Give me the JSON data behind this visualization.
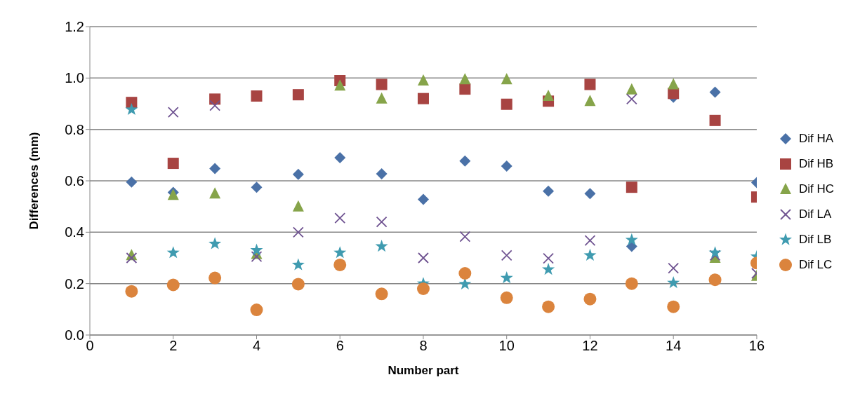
{
  "chart_data": {
    "type": "scatter",
    "xlabel": "Number part",
    "ylabel": "Differences (mm)",
    "x": [
      1,
      2,
      3,
      4,
      5,
      6,
      7,
      8,
      9,
      10,
      11,
      12,
      13,
      14,
      15,
      16
    ],
    "series": [
      {
        "name": "Dif HA",
        "color": "#4a71a7",
        "marker": "diamond",
        "values": [
          0.595,
          0.555,
          0.648,
          0.575,
          0.625,
          0.69,
          0.627,
          0.528,
          0.677,
          0.657,
          0.56,
          0.55,
          0.345,
          0.925,
          0.945,
          0.593
        ]
      },
      {
        "name": "Dif HB",
        "color": "#a84442",
        "marker": "square",
        "values": [
          0.905,
          0.668,
          0.918,
          0.93,
          0.935,
          0.99,
          0.975,
          0.92,
          0.957,
          0.898,
          0.91,
          0.975,
          0.575,
          0.94,
          0.835,
          0.537
        ]
      },
      {
        "name": "Dif HC",
        "color": "#86a44a",
        "marker": "triangle",
        "values": [
          0.31,
          0.545,
          0.55,
          0.315,
          0.5,
          0.97,
          0.92,
          0.99,
          0.995,
          0.995,
          0.93,
          0.91,
          0.955,
          0.975,
          0.3,
          0.23
        ]
      },
      {
        "name": "Dif LA",
        "color": "#6f5391",
        "marker": "cross",
        "values": [
          0.3,
          0.867,
          0.893,
          0.305,
          0.4,
          0.455,
          0.44,
          0.3,
          0.383,
          0.31,
          0.298,
          0.368,
          0.918,
          0.26,
          0.31,
          0.24
        ]
      },
      {
        "name": "Dif LB",
        "color": "#3f9bb0",
        "marker": "star",
        "values": [
          0.877,
          0.32,
          0.355,
          0.33,
          0.273,
          0.32,
          0.345,
          0.2,
          0.198,
          0.222,
          0.255,
          0.31,
          0.37,
          0.203,
          0.32,
          0.305
        ]
      },
      {
        "name": "Dif LC",
        "color": "#db843d",
        "marker": "circle",
        "values": [
          0.17,
          0.195,
          0.222,
          0.098,
          0.198,
          0.273,
          0.16,
          0.18,
          0.24,
          0.145,
          0.11,
          0.14,
          0.2,
          0.11,
          0.215,
          0.28
        ]
      }
    ],
    "xlim": [
      0,
      16
    ],
    "xticks": [
      0,
      2,
      4,
      6,
      8,
      10,
      12,
      14,
      16
    ],
    "ylim": [
      0,
      1.2
    ],
    "yticks": [
      {
        "value": 0,
        "label": "0.0"
      },
      {
        "value": 0.2,
        "label": "0.2"
      },
      {
        "value": 0.4,
        "label": "0.4"
      },
      {
        "value": 0.6,
        "label": "0.6"
      },
      {
        "value": 0.8,
        "label": "0.8"
      },
      {
        "value": 1.0,
        "label": "1.0"
      },
      {
        "value": 1.2,
        "label": "1.2"
      }
    ],
    "grid": "y",
    "legend": "right"
  }
}
